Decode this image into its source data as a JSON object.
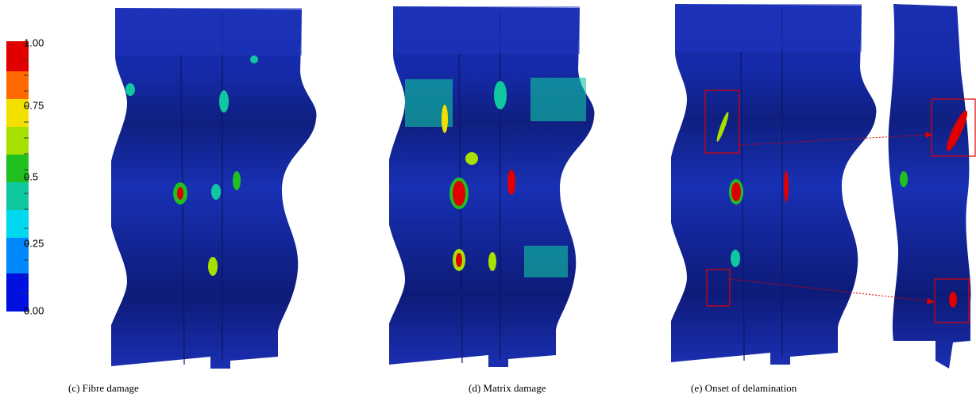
{
  "colorbar": {
    "labels": [
      "1.00",
      "0.75",
      "0.5",
      "0.25",
      "0.00"
    ]
  },
  "captions": [
    "(c) Fibre damage",
    "(d) Matrix damage",
    "(e) Onset of delamination"
  ]
}
